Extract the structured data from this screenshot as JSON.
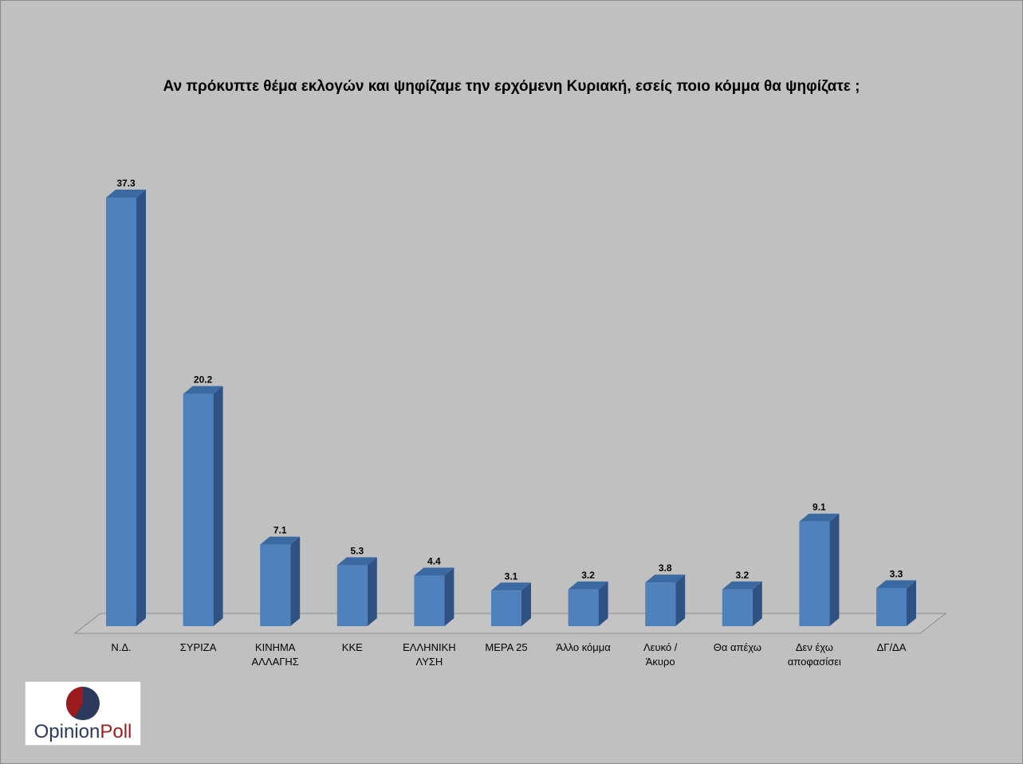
{
  "chart_data": {
    "type": "bar",
    "title": "Αν πρόκυπτε θέμα εκλογών και ψηφίζαμε την ερχόμενη Κυριακή, εσείς ποιο κόμμα θα ψηφίζατε ;",
    "categories": [
      [
        "Ν.Δ."
      ],
      [
        "ΣΥΡΙΖΑ"
      ],
      [
        "ΚΙΝΗΜΑ",
        "ΑΛΛΑΓΗΣ"
      ],
      [
        "ΚΚΕ"
      ],
      [
        "ΕΛΛΗΝΙΚΗ",
        "ΛΥΣΗ"
      ],
      [
        "ΜΕΡΑ 25"
      ],
      [
        "Άλλο κόμμα"
      ],
      [
        "Λευκό /",
        "Άκυρο"
      ],
      [
        "Θα απέχω"
      ],
      [
        "Δεν έχω",
        "αποφασίσει"
      ],
      [
        "ΔΓ/ΔΑ"
      ]
    ],
    "values": [
      37.3,
      20.2,
      7.1,
      5.3,
      4.4,
      3.1,
      3.2,
      3.8,
      3.2,
      9.1,
      3.3
    ],
    "value_labels": [
      "37.3",
      "20.2",
      "7.1",
      "5.3",
      "4.4",
      "3.1",
      "3.2",
      "3.8",
      "3.2",
      "9.1",
      "3.3"
    ],
    "ylim": [
      0,
      40
    ],
    "grid": false,
    "legend": "none",
    "colors": {
      "bar_front": "#4f81bd",
      "bar_side": "#2f5283",
      "bar_top": "#3b6aa3",
      "floor": "#c4c4c4"
    }
  },
  "logo": {
    "text_main": "Opinion",
    "text_accent": "Poll",
    "colors": {
      "navy": "#2b3a5c",
      "red": "#9b1b1e"
    }
  }
}
